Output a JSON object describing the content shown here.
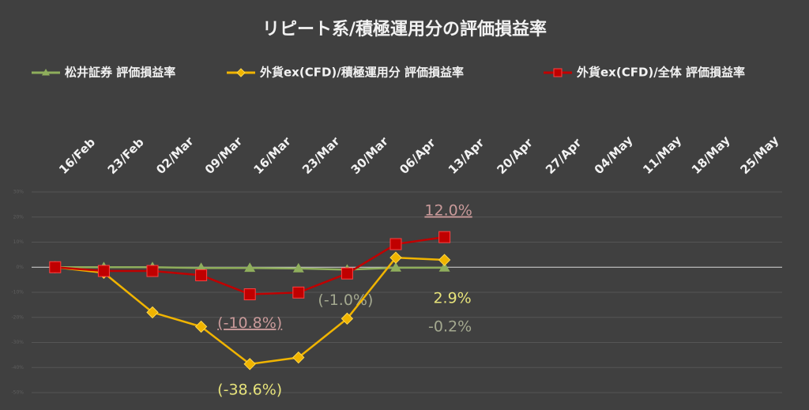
{
  "chart_data": {
    "type": "line",
    "title": "リピート系/積極運用分の評価損益率",
    "categories": [
      "16/Feb",
      "23/Feb",
      "02/Mar",
      "09/Mar",
      "16/Mar",
      "23/Mar",
      "30/Mar",
      "06/Apr",
      "13/Apr",
      "20/Apr",
      "27/Apr",
      "04/May",
      "11/May",
      "18/May",
      "25/May"
    ],
    "series": [
      {
        "name": "松井証券 評価損益率",
        "color": "#8fae5c",
        "marker": "triangle",
        "label_color": "#a3a88f",
        "values": [
          0,
          0,
          0,
          -0.3,
          -0.3,
          -0.5,
          -1.0,
          -0.2,
          -0.2,
          null,
          null,
          null,
          null,
          null,
          null
        ],
        "value_labels": [
          null,
          null,
          null,
          null,
          null,
          null,
          "(-1.0%)",
          null,
          "-0.2%",
          null,
          null,
          null,
          null,
          null,
          null
        ]
      },
      {
        "name": "外貨ex(CFD)/積極運用分 評価損益率",
        "color": "#f0b400",
        "marker": "diamond",
        "label_color": "#e6e27a",
        "values": [
          0,
          -2.2,
          -18,
          -23.7,
          -38.6,
          -36,
          -20.5,
          3.8,
          2.9,
          null,
          null,
          null,
          null,
          null,
          null
        ],
        "value_labels": [
          null,
          null,
          null,
          null,
          "(-38.6%)",
          null,
          null,
          null,
          "2.9%",
          null,
          null,
          null,
          null,
          null,
          null
        ]
      },
      {
        "name": "外貨ex(CFD)/全体 評価損益率",
        "color": "#c00000",
        "marker": "square",
        "label_color": "#c99a9a",
        "values": [
          0,
          -1.5,
          -1.5,
          -3.2,
          -10.8,
          -10.1,
          -2.5,
          9.2,
          12.0,
          null,
          null,
          null,
          null,
          null,
          null
        ],
        "value_labels": [
          null,
          null,
          null,
          null,
          "(-10.8%)",
          null,
          null,
          null,
          "12.0%",
          null,
          null,
          null,
          null,
          null,
          null
        ]
      }
    ],
    "ylim": [
      -50,
      30
    ],
    "yticks": [
      {
        "value": -50,
        "label": "-50%"
      },
      {
        "value": -40,
        "label": "-40%"
      },
      {
        "value": -30,
        "label": "-30%"
      },
      {
        "value": -20,
        "label": "-20%"
      },
      {
        "value": -10,
        "label": "-10%"
      },
      {
        "value": 0,
        "label": "0%"
      },
      {
        "value": 10,
        "label": "10%"
      },
      {
        "value": 20,
        "label": "20%"
      },
      {
        "value": 30,
        "label": "30%"
      }
    ],
    "grid": true,
    "legend": "top"
  }
}
